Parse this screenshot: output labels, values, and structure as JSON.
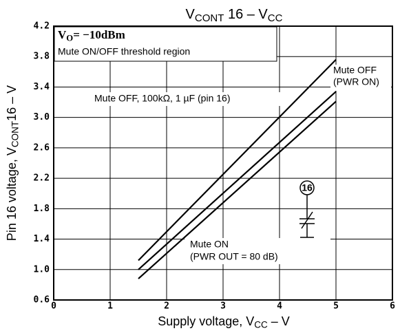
{
  "chart_data": {
    "type": "line",
    "title": [
      "V",
      "CONT",
      " 16  –  V",
      "CC"
    ],
    "x_label": [
      "Supply voltage, V",
      "CC",
      " – V"
    ],
    "y_label": [
      "Pin 16 voltage, V",
      "CONT",
      "16 – V"
    ],
    "annotations": {
      "condition": [
        "V",
        "O",
        "= −10dBm"
      ],
      "region": "Mute ON/OFF threshold region",
      "mute_off_rc": "Mute OFF, 100kΩ, 1 µF (pin 16)",
      "mute_off": "Mute OFF",
      "pwr_on": "(PWR ON)",
      "mute_on": "Mute ON",
      "pwr_out": "(PWR OUT = 80 dB)",
      "pin": "16"
    },
    "series": [
      {
        "color": "#000000",
        "x": [
          1.5,
          5
        ],
        "values": [
          1.12,
          3.76
        ]
      },
      {
        "color": "#000000",
        "x": [
          1.5,
          5
        ],
        "values": [
          1.0,
          3.34
        ]
      },
      {
        "color": "#000000",
        "x": [
          1.5,
          5
        ],
        "values": [
          0.88,
          3.21
        ]
      }
    ],
    "xlim": [
      0,
      6
    ],
    "xticks": [
      0,
      1,
      2,
      3,
      4,
      5,
      6
    ],
    "ylim": [
      0.6,
      4.2
    ],
    "yticks": [
      0.6,
      1.4,
      1.8,
      2.2,
      2.6,
      {
        "value": 3,
        "label": "3.0"
      },
      3.4,
      3.8,
      4.2,
      {
        "value": 1,
        "label": "1.0"
      }
    ],
    "grid": true
  }
}
